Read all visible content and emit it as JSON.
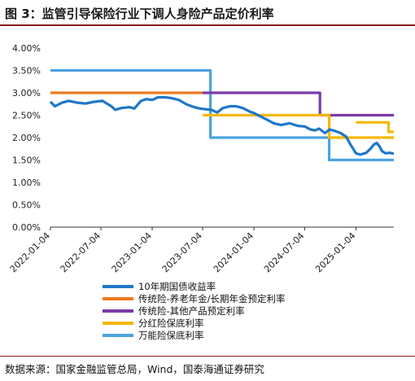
{
  "header": {
    "title": "图 3：监管引导保险行业下调人身险产品定价利率"
  },
  "footer": {
    "source": "数据来源：国家金融监管总局，Wind，国泰海通证券研究"
  },
  "chart_data": {
    "type": "line",
    "title": "",
    "xlabel": "",
    "ylabel": "",
    "ylim": [
      0.0,
      4.0
    ],
    "y_ticks": [
      "0.00%",
      "0.50%",
      "1.00%",
      "1.50%",
      "2.00%",
      "2.50%",
      "3.00%",
      "3.50%",
      "4.00%"
    ],
    "y_tick_values": [
      0.0,
      0.5,
      1.0,
      1.5,
      2.0,
      2.5,
      3.0,
      3.5,
      4.0
    ],
    "x_ticks": [
      "2022-01-04",
      "2022-07-04",
      "2023-01-04",
      "2023-07-04",
      "2024-01-04",
      "2024-07-04",
      "2025-01-04"
    ],
    "x_range": [
      "2022-01-04",
      "2025-05-20"
    ],
    "grid": false,
    "legend_position": "bottom",
    "series": [
      {
        "name": "10年期国债收益率",
        "color": "#1f77c8",
        "step": false,
        "points": [
          [
            "2022-01-04",
            2.8
          ],
          [
            "2022-01-20",
            2.7
          ],
          [
            "2022-02-15",
            2.78
          ],
          [
            "2022-03-10",
            2.82
          ],
          [
            "2022-04-10",
            2.78
          ],
          [
            "2022-05-10",
            2.76
          ],
          [
            "2022-06-10",
            2.8
          ],
          [
            "2022-07-10",
            2.82
          ],
          [
            "2022-08-10",
            2.7
          ],
          [
            "2022-08-25",
            2.62
          ],
          [
            "2022-09-15",
            2.66
          ],
          [
            "2022-10-15",
            2.68
          ],
          [
            "2022-11-01",
            2.65
          ],
          [
            "2022-11-25",
            2.82
          ],
          [
            "2022-12-15",
            2.86
          ],
          [
            "2023-01-04",
            2.84
          ],
          [
            "2023-01-25",
            2.9
          ],
          [
            "2023-02-20",
            2.9
          ],
          [
            "2023-03-15",
            2.88
          ],
          [
            "2023-04-10",
            2.84
          ],
          [
            "2023-05-05",
            2.75
          ],
          [
            "2023-05-25",
            2.7
          ],
          [
            "2023-06-15",
            2.66
          ],
          [
            "2023-07-04",
            2.64
          ],
          [
            "2023-08-05",
            2.62
          ],
          [
            "2023-08-25",
            2.56
          ],
          [
            "2023-09-15",
            2.66
          ],
          [
            "2023-10-10",
            2.7
          ],
          [
            "2023-11-01",
            2.7
          ],
          [
            "2023-11-25",
            2.66
          ],
          [
            "2023-12-20",
            2.58
          ],
          [
            "2024-01-04",
            2.55
          ],
          [
            "2024-01-25",
            2.48
          ],
          [
            "2024-02-20",
            2.4
          ],
          [
            "2024-03-15",
            2.32
          ],
          [
            "2024-04-10",
            2.28
          ],
          [
            "2024-05-10",
            2.32
          ],
          [
            "2024-06-10",
            2.26
          ],
          [
            "2024-07-04",
            2.25
          ],
          [
            "2024-07-25",
            2.18
          ],
          [
            "2024-08-10",
            2.16
          ],
          [
            "2024-08-25",
            2.2
          ],
          [
            "2024-09-15",
            2.1
          ],
          [
            "2024-10-01",
            2.18
          ],
          [
            "2024-10-20",
            2.15
          ],
          [
            "2024-11-10",
            2.1
          ],
          [
            "2024-11-30",
            2.02
          ],
          [
            "2024-12-15",
            1.85
          ],
          [
            "2025-01-04",
            1.65
          ],
          [
            "2025-01-20",
            1.62
          ],
          [
            "2025-02-10",
            1.66
          ],
          [
            "2025-02-25",
            1.75
          ],
          [
            "2025-03-10",
            1.85
          ],
          [
            "2025-03-20",
            1.88
          ],
          [
            "2025-03-30",
            1.8
          ],
          [
            "2025-04-07",
            1.7
          ],
          [
            "2025-04-20",
            1.65
          ],
          [
            "2025-05-05",
            1.66
          ],
          [
            "2025-05-20",
            1.64
          ]
        ]
      },
      {
        "name": "传统险-养老年金/长期年金预定利率",
        "color": "#f07a1e",
        "step": true,
        "points": [
          [
            "2022-01-04",
            3.0
          ],
          [
            "2023-07-04",
            3.0
          ]
        ]
      },
      {
        "name": "传统险-其他产品预定利率",
        "color": "#7b3aa8",
        "step": true,
        "points": [
          [
            "2023-07-04",
            3.0
          ],
          [
            "2024-08-28",
            3.0
          ],
          [
            "2024-08-28",
            2.5
          ],
          [
            "2025-05-20",
            2.5
          ]
        ]
      },
      {
        "name": "分红险保底利率",
        "color": "#f5b800",
        "step": true,
        "points": [
          [
            "2023-07-04",
            2.5
          ],
          [
            "2024-09-30",
            2.5
          ],
          [
            "2024-09-30",
            2.0
          ],
          [
            "2025-05-20",
            2.0
          ],
          [
            "2025-01-04",
            2.34
          ],
          [
            "2025-05-01",
            2.34
          ],
          [
            "2025-05-01",
            2.13
          ],
          [
            "2025-05-20",
            2.13
          ]
        ]
      },
      {
        "name": "万能险保底利率",
        "color": "#4aa3df",
        "step": true,
        "points": [
          [
            "2022-01-04",
            3.5
          ],
          [
            "2023-08-01",
            3.5
          ],
          [
            "2023-08-01",
            2.0
          ],
          [
            "2024-09-30",
            2.0
          ],
          [
            "2024-09-30",
            1.5
          ],
          [
            "2025-05-20",
            1.5
          ]
        ]
      }
    ]
  }
}
